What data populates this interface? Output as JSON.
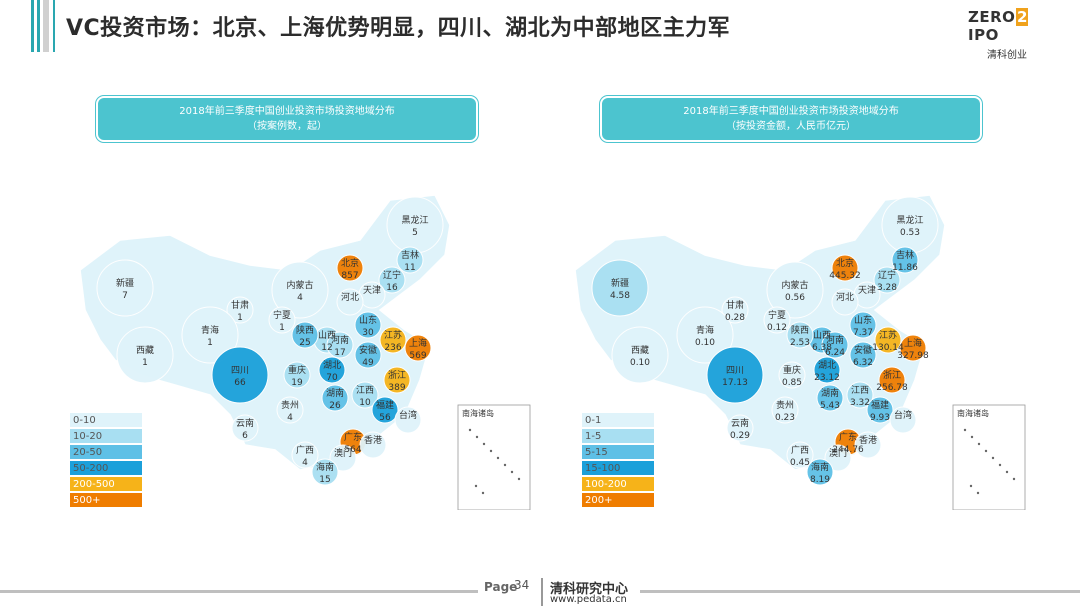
{
  "title": "VC投资市场：北京、上海优势明显，四川、湖北为中部地区主力军",
  "logo": {
    "brand_left": "ZERO",
    "brand_mid": "2",
    "brand_right": "IPO",
    "sub": "清科创业"
  },
  "left_map": {
    "title_line1": "2018年前三季度中国创业投资市场投资地域分布",
    "title_line2": "（按案例数，起）",
    "legend": [
      {
        "label": "0-10",
        "color": "#dff3fa"
      },
      {
        "label": "10-20",
        "color": "#a8dff2"
      },
      {
        "label": "20-50",
        "color": "#5ec0e6"
      },
      {
        "label": "50-200",
        "color": "#1ba0da"
      },
      {
        "label": "200-500",
        "color": "#f6b319"
      },
      {
        "label": "500+",
        "color": "#ef7d00"
      }
    ],
    "labels": [
      {
        "n": "黑龙江",
        "v": "5"
      },
      {
        "n": "吉林",
        "v": "11"
      },
      {
        "n": "辽宁",
        "v": "16"
      },
      {
        "n": "北京",
        "v": "857"
      },
      {
        "n": "天津",
        "v": ""
      },
      {
        "n": "河北",
        "v": ""
      },
      {
        "n": "内蒙古",
        "v": "4"
      },
      {
        "n": "新疆",
        "v": "7"
      },
      {
        "n": "甘肃",
        "v": "1"
      },
      {
        "n": "宁夏",
        "v": "1"
      },
      {
        "n": "青海",
        "v": "1"
      },
      {
        "n": "西藏",
        "v": "1"
      },
      {
        "n": "山西",
        "v": "12"
      },
      {
        "n": "山东",
        "v": "30"
      },
      {
        "n": "陕西",
        "v": "25"
      },
      {
        "n": "河南",
        "v": "17"
      },
      {
        "n": "江苏",
        "v": "236"
      },
      {
        "n": "上海",
        "v": "569"
      },
      {
        "n": "安徽",
        "v": "49"
      },
      {
        "n": "浙江",
        "v": "389"
      },
      {
        "n": "四川",
        "v": "66"
      },
      {
        "n": "重庆",
        "v": "19"
      },
      {
        "n": "湖北",
        "v": "70"
      },
      {
        "n": "贵州",
        "v": "4"
      },
      {
        "n": "湖南",
        "v": "26"
      },
      {
        "n": "江西",
        "v": "10"
      },
      {
        "n": "福建",
        "v": "56"
      },
      {
        "n": "台湾",
        "v": ""
      },
      {
        "n": "云南",
        "v": "6"
      },
      {
        "n": "广西",
        "v": "4"
      },
      {
        "n": "广东",
        "v": "564"
      },
      {
        "n": "香港",
        "v": ""
      },
      {
        "n": "澳门",
        "v": ""
      },
      {
        "n": "海南",
        "v": "15"
      }
    ],
    "inset": "南海诸岛"
  },
  "right_map": {
    "title_line1": "2018年前三季度中国创业投资市场投资地域分布",
    "title_line2": "（按投资金额，人民币亿元）",
    "legend": [
      {
        "label": "0-1",
        "color": "#dff3fa"
      },
      {
        "label": "1-5",
        "color": "#a8dff2"
      },
      {
        "label": "5-15",
        "color": "#5ec0e6"
      },
      {
        "label": "15-100",
        "color": "#1ba0da"
      },
      {
        "label": "100-200",
        "color": "#f6b319"
      },
      {
        "label": "200+",
        "color": "#ef7d00"
      }
    ],
    "labels": [
      {
        "n": "黑龙江",
        "v": "0.53"
      },
      {
        "n": "吉林",
        "v": "11.86"
      },
      {
        "n": "辽宁",
        "v": "3.28"
      },
      {
        "n": "北京",
        "v": "445.32"
      },
      {
        "n": "天津",
        "v": ""
      },
      {
        "n": "河北",
        "v": ""
      },
      {
        "n": "内蒙古",
        "v": "0.56"
      },
      {
        "n": "新疆",
        "v": "4.58"
      },
      {
        "n": "甘肃",
        "v": "0.28"
      },
      {
        "n": "宁夏",
        "v": "0.12"
      },
      {
        "n": "青海",
        "v": "0.10"
      },
      {
        "n": "西藏",
        "v": "0.10"
      },
      {
        "n": "山西",
        "v": "6.38"
      },
      {
        "n": "山东",
        "v": "7.37"
      },
      {
        "n": "陕西",
        "v": "2.53"
      },
      {
        "n": "河南",
        "v": "6.24"
      },
      {
        "n": "江苏",
        "v": "130.14"
      },
      {
        "n": "上海",
        "v": "327.98"
      },
      {
        "n": "安徽",
        "v": "6.32"
      },
      {
        "n": "浙江",
        "v": "256.78"
      },
      {
        "n": "四川",
        "v": "17.13"
      },
      {
        "n": "重庆",
        "v": "0.85"
      },
      {
        "n": "湖北",
        "v": "23.12"
      },
      {
        "n": "贵州",
        "v": "0.23"
      },
      {
        "n": "湖南",
        "v": "5.43"
      },
      {
        "n": "江西",
        "v": "3.32"
      },
      {
        "n": "福建",
        "v": "9.93"
      },
      {
        "n": "台湾",
        "v": ""
      },
      {
        "n": "云南",
        "v": "0.29"
      },
      {
        "n": "广西",
        "v": "0.45"
      },
      {
        "n": "广东",
        "v": "244.76"
      },
      {
        "n": "香港",
        "v": ""
      },
      {
        "n": "澳门",
        "v": ""
      },
      {
        "n": "海南",
        "v": "8.19"
      }
    ],
    "inset": "南海诸岛"
  },
  "footer": {
    "page_label": "Page",
    "page_number": "34",
    "org": "清科研究中心",
    "url": "www.pedata.cn"
  }
}
